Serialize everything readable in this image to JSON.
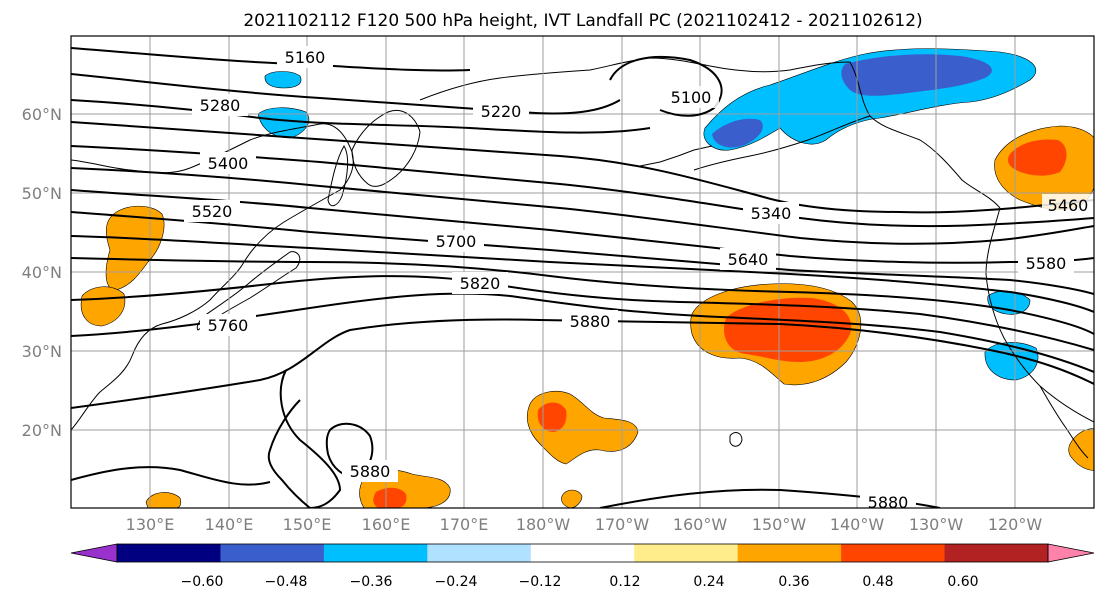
{
  "title": "2021102112 F120 500 hPa height, IVT Landfall PC (2021102412 - 2021102612)",
  "map": {
    "lat_ticks": [
      "20°N",
      "30°N",
      "40°N",
      "50°N",
      "60°N"
    ],
    "lon_ticks": [
      "130°E",
      "140°E",
      "150°E",
      "160°E",
      "170°E",
      "180°W",
      "170°W",
      "160°W",
      "150°W",
      "140°W",
      "130°W",
      "120°W"
    ],
    "grid": true,
    "contour_labels": [
      "5160",
      "5220",
      "5280",
      "5400",
      "5520",
      "5700",
      "5760",
      "5820",
      "5880",
      "5100",
      "5340",
      "5640",
      "5580",
      "5460",
      "5880",
      "5880"
    ]
  },
  "colorbar": {
    "ticks": [
      "−0.60",
      "−0.48",
      "−0.36",
      "−0.24",
      "−0.12",
      "0.12",
      "0.24",
      "0.36",
      "0.48",
      "0.60"
    ],
    "colors": [
      "#9932cc",
      "#000080",
      "#3a5fcd",
      "#00bfff",
      "#b0e2ff",
      "#ffffff",
      "#ffec8b",
      "#ffa500",
      "#ff4500",
      "#b22222",
      "#ff82ab"
    ]
  },
  "shading_colors": {
    "neg_light": "#00bfff",
    "neg_dark": "#3a5fcd",
    "pos_light": "#ffa500",
    "pos_dark": "#ff4500",
    "pos_pale": "#ffec8b"
  }
}
